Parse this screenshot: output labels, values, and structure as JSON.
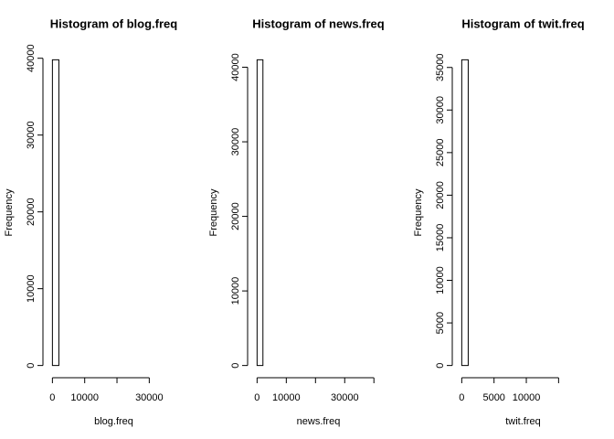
{
  "chart_data": [
    {
      "type": "histogram",
      "title": "Histogram of blog.freq",
      "x_label": "blog.freq",
      "y_label": "Frequency",
      "bins": [
        0,
        2000,
        4000,
        6000,
        8000,
        10000,
        12000,
        14000,
        16000,
        18000,
        20000,
        22000,
        24000,
        26000,
        28000,
        30000,
        32000,
        34000,
        36000,
        38000
      ],
      "counts": [
        39800,
        0,
        0,
        0,
        0,
        0,
        0,
        0,
        0,
        0,
        0,
        0,
        0,
        0,
        0,
        0,
        0,
        0,
        0
      ],
      "xlim": [
        -1520,
        39520
      ],
      "xticks": [
        0,
        10000,
        30000
      ],
      "xticks_unlabeled": [
        20000
      ],
      "ylim": [
        -1592,
        41392
      ],
      "yticks": [
        0,
        10000,
        20000,
        30000,
        40000
      ]
    },
    {
      "type": "histogram",
      "title": "Histogram of news.freq",
      "x_label": "news.freq",
      "y_label": "Frequency",
      "bins": [
        0,
        2000,
        4000,
        6000,
        8000,
        10000,
        12000,
        14000,
        16000,
        18000,
        20000,
        22000,
        24000,
        26000,
        28000,
        30000,
        32000,
        34000,
        36000,
        38000,
        40000,
        42000
      ],
      "counts": [
        41000,
        0,
        0,
        0,
        0,
        0,
        0,
        0,
        0,
        0,
        0,
        0,
        0,
        0,
        0,
        0,
        0,
        0,
        0,
        0,
        0
      ],
      "xlim": [
        -1680,
        43680
      ],
      "xticks": [
        0,
        10000,
        30000
      ],
      "xticks_unlabeled": [
        20000,
        40000
      ],
      "ylim": [
        -1640,
        42640
      ],
      "yticks": [
        0,
        10000,
        20000,
        30000,
        40000
      ]
    },
    {
      "type": "histogram",
      "title": "Histogram of twit.freq",
      "x_label": "twit.freq",
      "y_label": "Frequency",
      "bins": [
        0,
        1000,
        2000,
        3000,
        4000,
        5000,
        6000,
        7000,
        8000,
        9000,
        10000,
        11000,
        12000,
        13000,
        14000,
        15000,
        16000,
        17000,
        18000,
        19000
      ],
      "counts": [
        35900,
        0,
        0,
        0,
        0,
        0,
        0,
        0,
        0,
        0,
        0,
        0,
        0,
        0,
        0,
        0,
        0,
        0,
        0
      ],
      "xlim": [
        -760,
        19760
      ],
      "xticks": [
        0,
        5000,
        10000
      ],
      "xticks_unlabeled": [
        15000
      ],
      "ylim": [
        -1436,
        37336
      ],
      "yticks": [
        0,
        5000,
        10000,
        15000,
        20000,
        25000,
        30000,
        35000
      ]
    }
  ]
}
